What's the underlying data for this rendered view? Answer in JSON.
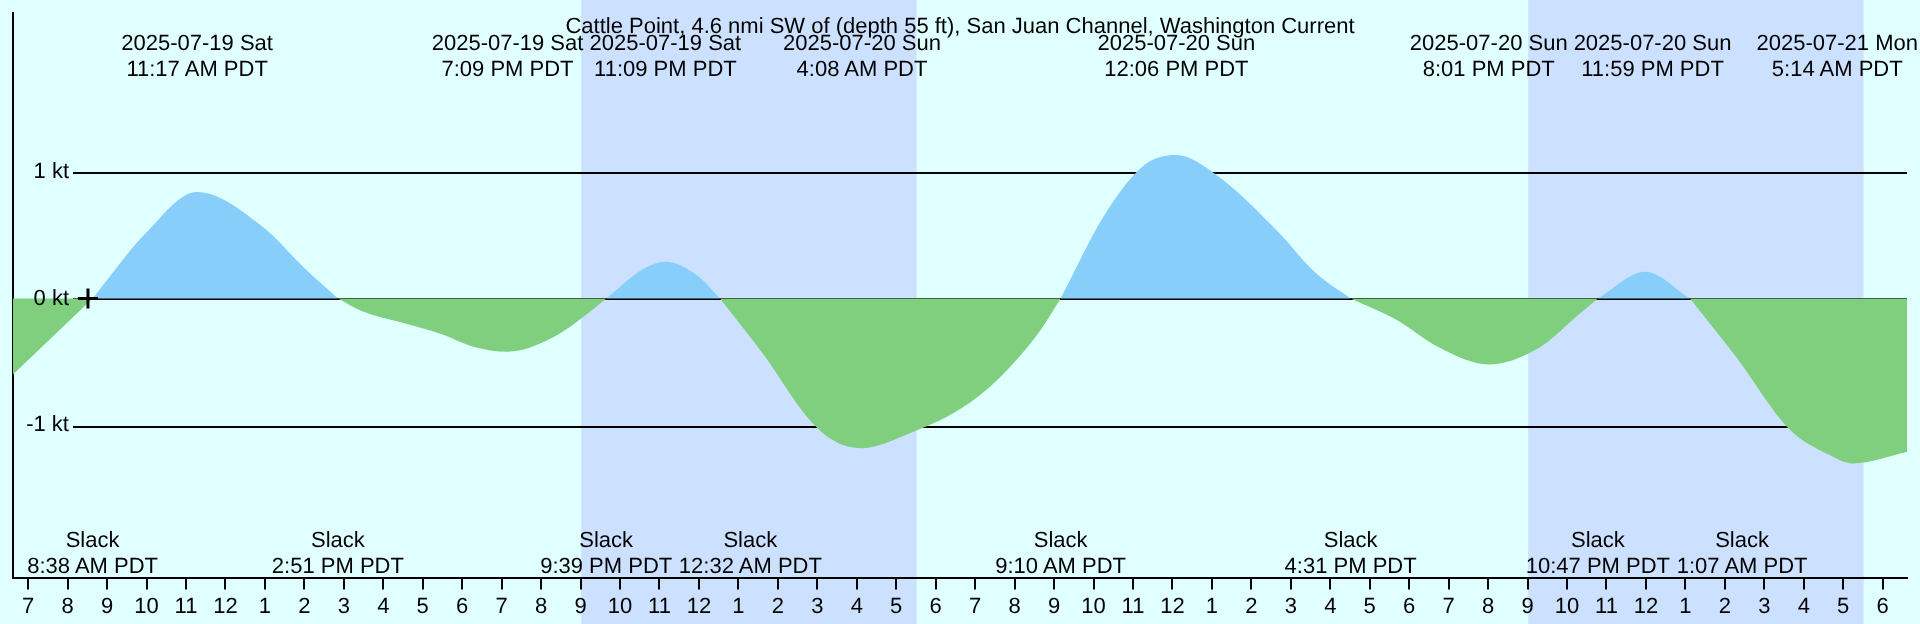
{
  "chart_data": {
    "type": "area",
    "title": "Cattle Point, 4.6 nmi SW of (depth 55 ft), San Juan Channel, Washington Current",
    "xlim": [
      "2025-07-19T06:37",
      "2025-07-21T06:37"
    ],
    "xticks": [
      {
        "value": "2025-07-19T07:00",
        "label": "7"
      },
      {
        "value": "2025-07-19T08:00",
        "label": "8"
      },
      {
        "value": "2025-07-19T09:00",
        "label": "9"
      },
      {
        "value": "2025-07-19T10:00",
        "label": "10"
      },
      {
        "value": "2025-07-19T11:00",
        "label": "11"
      },
      {
        "value": "2025-07-19T12:00",
        "label": "12"
      },
      {
        "value": "2025-07-19T13:00",
        "label": "1"
      },
      {
        "value": "2025-07-19T14:00",
        "label": "2"
      },
      {
        "value": "2025-07-19T15:00",
        "label": "3"
      },
      {
        "value": "2025-07-19T16:00",
        "label": "4"
      },
      {
        "value": "2025-07-19T17:00",
        "label": "5"
      },
      {
        "value": "2025-07-19T18:00",
        "label": "6"
      },
      {
        "value": "2025-07-19T19:00",
        "label": "7"
      },
      {
        "value": "2025-07-19T20:00",
        "label": "8"
      },
      {
        "value": "2025-07-19T21:00",
        "label": "9"
      },
      {
        "value": "2025-07-19T22:00",
        "label": "10"
      },
      {
        "value": "2025-07-19T23:00",
        "label": "11"
      },
      {
        "value": "2025-07-20T00:00",
        "label": "12"
      },
      {
        "value": "2025-07-20T01:00",
        "label": "1"
      },
      {
        "value": "2025-07-20T02:00",
        "label": "2"
      },
      {
        "value": "2025-07-20T03:00",
        "label": "3"
      },
      {
        "value": "2025-07-20T04:00",
        "label": "4"
      },
      {
        "value": "2025-07-20T05:00",
        "label": "5"
      },
      {
        "value": "2025-07-20T06:00",
        "label": "6"
      },
      {
        "value": "2025-07-20T07:00",
        "label": "7"
      },
      {
        "value": "2025-07-20T08:00",
        "label": "8"
      },
      {
        "value": "2025-07-20T09:00",
        "label": "9"
      },
      {
        "value": "2025-07-20T10:00",
        "label": "10"
      },
      {
        "value": "2025-07-20T11:00",
        "label": "11"
      },
      {
        "value": "2025-07-20T12:00",
        "label": "12"
      },
      {
        "value": "2025-07-20T13:00",
        "label": "1"
      },
      {
        "value": "2025-07-20T14:00",
        "label": "2"
      },
      {
        "value": "2025-07-20T15:00",
        "label": "3"
      },
      {
        "value": "2025-07-20T16:00",
        "label": "4"
      },
      {
        "value": "2025-07-20T17:00",
        "label": "5"
      },
      {
        "value": "2025-07-20T18:00",
        "label": "6"
      },
      {
        "value": "2025-07-20T19:00",
        "label": "7"
      },
      {
        "value": "2025-07-20T20:00",
        "label": "8"
      },
      {
        "value": "2025-07-20T21:00",
        "label": "9"
      },
      {
        "value": "2025-07-20T22:00",
        "label": "10"
      },
      {
        "value": "2025-07-20T23:00",
        "label": "11"
      },
      {
        "value": "2025-07-21T00:00",
        "label": "12"
      },
      {
        "value": "2025-07-21T01:00",
        "label": "1"
      },
      {
        "value": "2025-07-21T02:00",
        "label": "2"
      },
      {
        "value": "2025-07-21T03:00",
        "label": "3"
      },
      {
        "value": "2025-07-21T04:00",
        "label": "4"
      },
      {
        "value": "2025-07-21T05:00",
        "label": "5"
      },
      {
        "value": "2025-07-21T06:00",
        "label": "6"
      }
    ],
    "ylim": [
      -2.2,
      2.25
    ],
    "yticks": [
      {
        "value": 1,
        "label": "1 kt"
      },
      {
        "value": 0,
        "label": "0 kt"
      },
      {
        "value": -1,
        "label": "-1 kt"
      }
    ],
    "grid": "y",
    "legend": false,
    "bands": [
      {
        "axis": "x",
        "from": "2025-07-19T21:01",
        "to": "2025-07-20T05:31",
        "color": "#cce0ff"
      },
      {
        "axis": "x",
        "from": "2025-07-20T21:01",
        "to": "2025-07-21T05:31",
        "color": "#cce0ff"
      }
    ],
    "x": [
      "2025-07-19T06:37",
      "2025-07-19T08:38",
      "2025-07-19T09:58",
      "2025-07-19T11:17",
      "2025-07-19T12:58",
      "2025-07-19T13:58",
      "2025-07-19T14:51",
      "2025-07-19T15:28",
      "2025-07-19T16:28",
      "2025-07-19T17:28",
      "2025-07-19T18:17",
      "2025-07-19T19:09",
      "2025-07-19T20:17",
      "2025-07-19T21:08",
      "2025-07-19T21:39",
      "2025-07-19T22:38",
      "2025-07-19T23:09",
      "2025-07-19T23:58",
      "2025-07-20T00:32",
      "2025-07-20T01:38",
      "2025-07-20T02:47",
      "2025-07-20T03:28",
      "2025-07-20T04:08",
      "2025-07-20T05:17",
      "2025-07-20T06:38",
      "2025-07-20T07:38",
      "2025-07-20T08:38",
      "2025-07-20T09:10",
      "2025-07-20T10:17",
      "2025-07-20T11:17",
      "2025-07-20T12:06",
      "2025-07-20T13:08",
      "2025-07-20T14:38",
      "2025-07-20T15:38",
      "2025-07-20T16:31",
      "2025-07-20T17:38",
      "2025-07-20T18:47",
      "2025-07-20T20:01",
      "2025-07-20T21:17",
      "2025-07-20T22:17",
      "2025-07-20T22:47",
      "2025-07-20T23:59",
      "2025-07-21T01:07",
      "2025-07-21T02:17",
      "2025-07-21T03:38",
      "2025-07-21T04:38",
      "2025-07-21T05:14",
      "2025-07-21T06:37"
    ],
    "series": [
      {
        "color": "#87cefa",
        "values": [
          null,
          0,
          0.51,
          0.84,
          0.56,
          0.25,
          0,
          null,
          null,
          null,
          null,
          null,
          null,
          null,
          0,
          0.24,
          0.29,
          0.18,
          0,
          null,
          null,
          null,
          null,
          null,
          null,
          null,
          null,
          0,
          0.66,
          1.05,
          1.13,
          0.97,
          0.54,
          0.2,
          0,
          null,
          null,
          null,
          null,
          null,
          0,
          0.21,
          0,
          null,
          null,
          null,
          null,
          null
        ]
      },
      {
        "color": "#7fcf7f",
        "values": [
          -0.6,
          0,
          null,
          null,
          null,
          null,
          0,
          -0.1,
          -0.19,
          -0.28,
          -0.38,
          -0.42,
          -0.31,
          -0.13,
          0,
          null,
          null,
          null,
          0,
          -0.44,
          -0.95,
          -1.13,
          -1.18,
          -1.07,
          -0.87,
          -0.62,
          -0.26,
          0,
          null,
          null,
          null,
          null,
          null,
          null,
          0,
          -0.16,
          -0.39,
          -0.52,
          -0.39,
          -0.13,
          0,
          null,
          0,
          -0.46,
          -1.03,
          -1.23,
          -1.3,
          -1.21
        ]
      },
      {
        "type": "scatter",
        "color": "#000000",
        "marker": "cross",
        "x": [
          "2025-07-19T08:31"
        ],
        "values": [
          0
        ]
      }
    ],
    "annotations": [
      "2025-07-19 Sat\n11:17 AM PDT",
      "2025-07-19 Sat\n7:09 PM PDT",
      "2025-07-19 Sat\n11:09 PM PDT",
      "2025-07-20 Sun\n4:08 AM PDT",
      "2025-07-20 Sun\n12:06 PM PDT",
      "2025-07-20 Sun\n8:01 PM PDT",
      "2025-07-20 Sun\n11:59 PM PDT",
      "2025-07-21 Mon\n5:14 AM PDT",
      "Slack\n8:38 AM PDT",
      "Slack\n2:51 PM PDT",
      "Slack\n9:39 PM PDT",
      "Slack\n12:32 AM PDT",
      "Slack\n9:10 AM PDT",
      "Slack\n4:31 PM PDT",
      "Slack\n10:47 PM PDT",
      "Slack\n1:07 AM PDT"
    ]
  }
}
